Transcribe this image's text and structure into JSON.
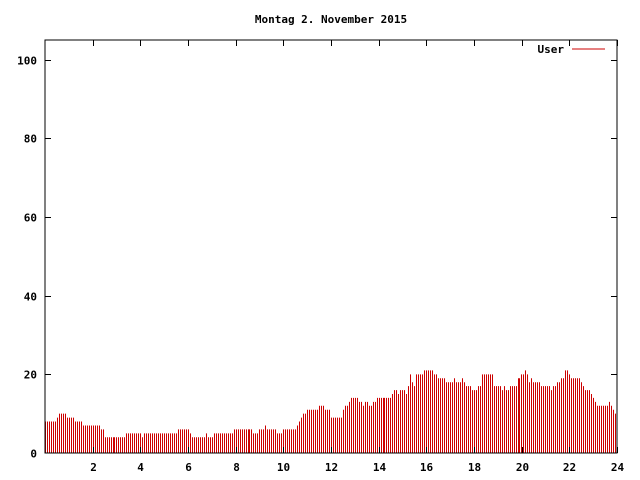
{
  "chart_data": {
    "type": "bar",
    "title": "Montag 2. November 2015",
    "xlabel": "",
    "ylabel": "",
    "xlim": [
      0,
      24
    ],
    "ylim": [
      0,
      105
    ],
    "x_ticks": [
      2,
      4,
      6,
      8,
      10,
      12,
      14,
      16,
      18,
      20,
      22,
      24
    ],
    "y_ticks": [
      0,
      20,
      40,
      60,
      80,
      100
    ],
    "grid": false,
    "legend_position": "top-right",
    "x_step_hours": 0.0833,
    "series": [
      {
        "name": "User",
        "color": "#cc0000",
        "values": [
          8,
          8,
          8,
          8,
          8,
          8,
          9,
          10,
          10,
          10,
          10,
          9,
          9,
          9,
          9,
          8,
          8,
          8,
          8,
          7,
          7,
          7,
          7,
          7,
          7,
          7,
          7,
          7,
          6,
          6,
          4,
          4,
          4,
          4,
          4,
          4,
          4,
          4,
          4,
          4,
          4,
          5,
          5,
          5,
          5,
          5,
          5,
          5,
          5,
          4,
          5,
          5,
          5,
          5,
          5,
          5,
          5,
          5,
          5,
          5,
          5,
          5,
          5,
          5,
          5,
          5,
          5,
          6,
          6,
          6,
          6,
          6,
          6,
          5,
          4,
          4,
          4,
          4,
          4,
          4,
          4,
          5,
          4,
          4,
          4,
          5,
          5,
          5,
          5,
          5,
          5,
          5,
          5,
          5,
          5,
          6,
          6,
          6,
          6,
          6,
          6,
          6,
          6,
          6,
          6,
          5,
          5,
          5,
          6,
          6,
          6,
          7,
          6,
          6,
          6,
          6,
          6,
          5,
          5,
          5,
          6,
          6,
          6,
          6,
          6,
          6,
          6,
          7,
          8,
          9,
          10,
          10,
          11,
          11,
          11,
          11,
          11,
          11,
          12,
          12,
          12,
          11,
          11,
          11,
          9,
          9,
          9,
          9,
          9,
          9,
          11,
          12,
          12,
          13,
          14,
          14,
          14,
          14,
          13,
          13,
          12,
          13,
          13,
          12,
          12,
          13,
          13,
          14,
          14,
          14,
          14,
          14,
          14,
          14,
          14,
          15,
          16,
          16,
          15,
          16,
          16,
          16,
          15,
          17,
          20,
          18,
          17,
          20,
          20,
          20,
          20,
          21,
          21,
          21,
          21,
          21,
          20,
          20,
          19,
          19,
          19,
          19,
          18,
          18,
          18,
          18,
          19,
          18,
          18,
          18,
          19,
          18,
          17,
          17,
          17,
          16,
          16,
          16,
          17,
          17,
          20,
          20,
          20,
          20,
          20,
          20,
          17,
          17,
          17,
          17,
          16,
          17,
          16,
          16,
          17,
          17,
          17,
          17,
          19,
          19,
          20,
          20,
          21,
          20,
          18,
          19,
          18,
          18,
          18,
          18,
          17,
          17,
          17,
          17,
          17,
          16,
          17,
          17,
          18,
          18,
          19,
          19,
          21,
          21,
          20,
          19,
          19,
          19,
          19,
          19,
          18,
          17,
          16,
          16,
          16,
          15,
          14,
          13,
          12,
          12,
          12,
          12,
          12,
          12,
          13,
          12,
          11,
          10
        ]
      }
    ]
  }
}
